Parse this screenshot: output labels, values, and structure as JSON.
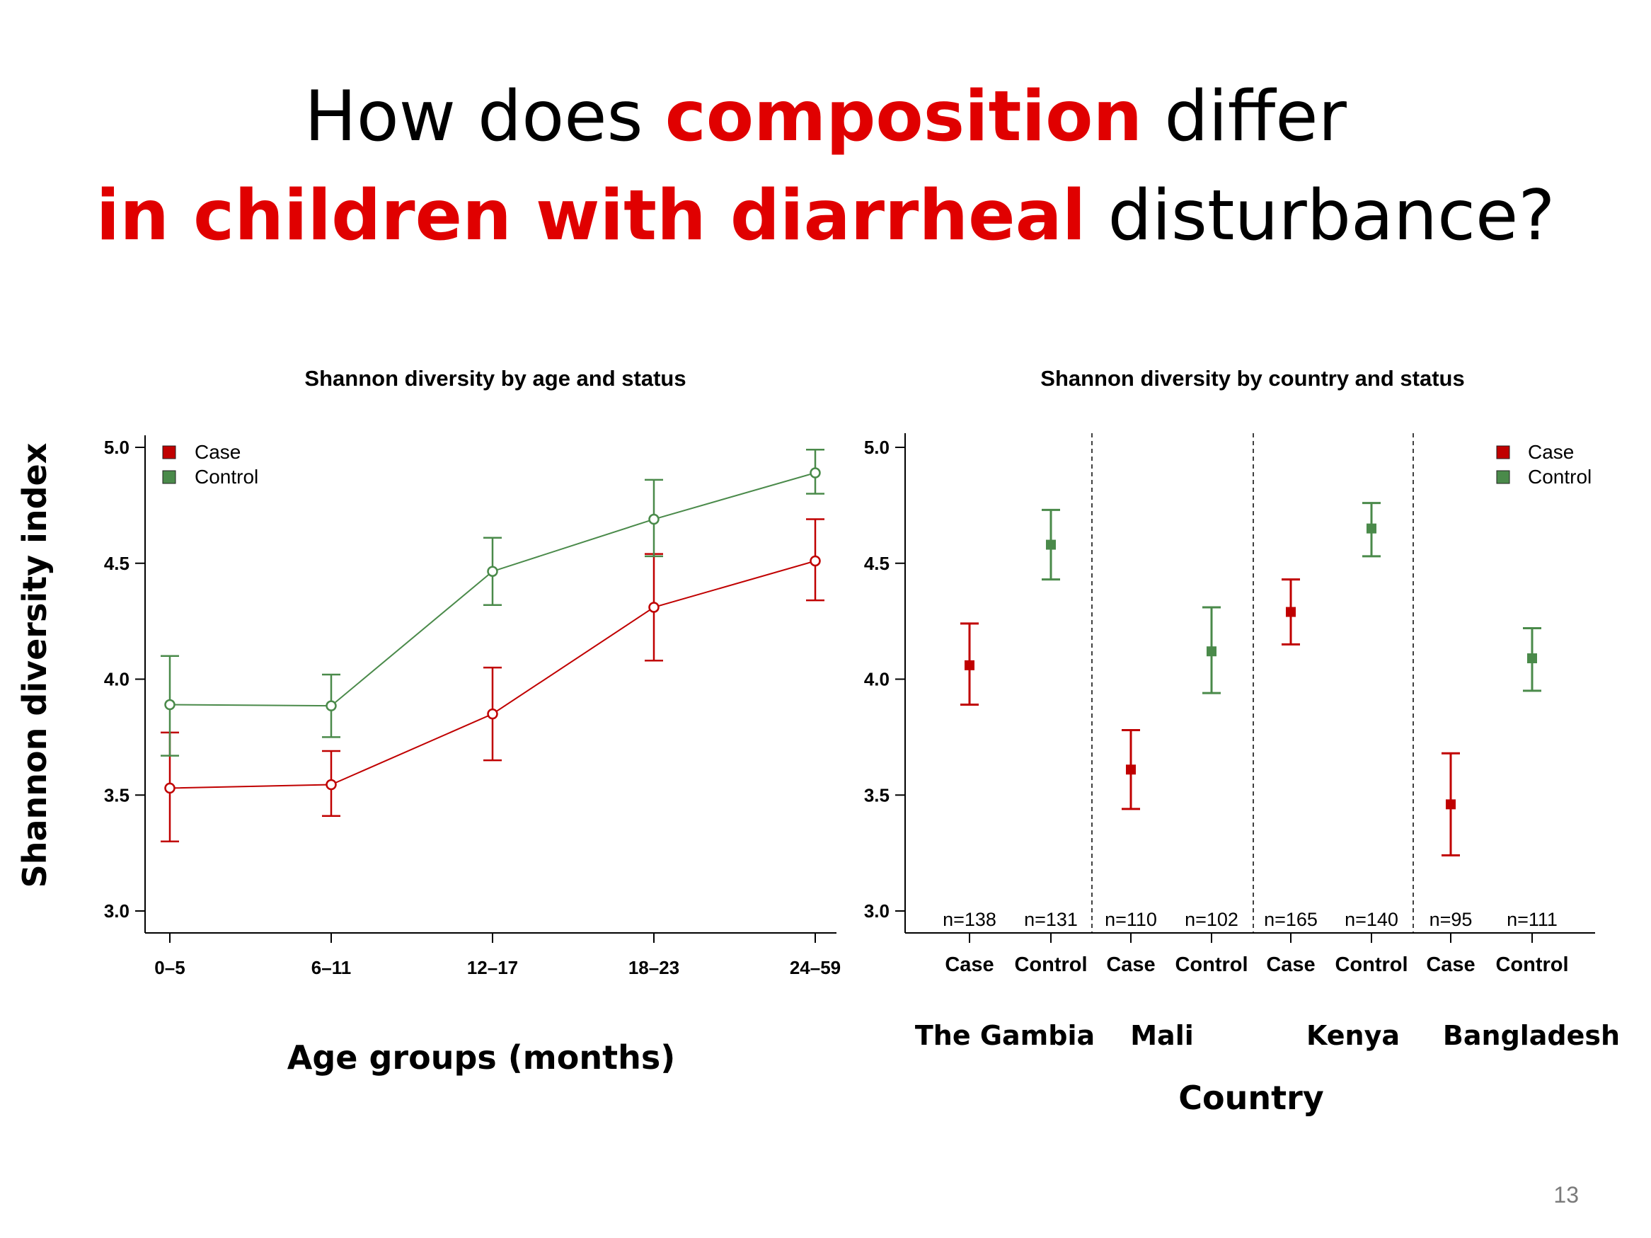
{
  "slide": {
    "title_parts": [
      {
        "text": "How does ",
        "highlight": false
      },
      {
        "text": "composition",
        "highlight": true
      },
      {
        "text": " differ ",
        "highlight": false
      },
      {
        "text": "in children with diarrheal",
        "highlight": true
      },
      {
        "text": " disturbance?",
        "highlight": false
      }
    ],
    "page_number": "13",
    "shared_ylabel": "Shannon diversity index",
    "colors": {
      "case": "#c00000",
      "control": "#4a8a4a",
      "title_highlight": "#e00000"
    }
  },
  "chart_data": [
    {
      "type": "line",
      "title": "Shannon diversity by age and status",
      "xlabel": "Age groups (months)",
      "ylabel": "Shannon diversity index",
      "categories": [
        "0–5",
        "6–11",
        "12–17",
        "18–23",
        "24–59"
      ],
      "ylim": [
        3.0,
        5.0
      ],
      "yticks": [
        "3.0",
        "3.5",
        "4.0",
        "4.5",
        "5.0"
      ],
      "legend": {
        "position": "top-left",
        "entries": [
          "Case",
          "Control"
        ]
      },
      "grid": false,
      "series": [
        {
          "name": "Case",
          "color": "#c00000",
          "values": [
            3.53,
            3.545,
            3.85,
            4.31,
            4.51
          ],
          "lower": [
            3.3,
            3.41,
            3.65,
            4.08,
            4.34
          ],
          "upper": [
            3.77,
            3.69,
            4.05,
            4.54,
            4.69
          ]
        },
        {
          "name": "Control",
          "color": "#4a8a4a",
          "values": [
            3.89,
            3.885,
            4.465,
            4.69,
            4.89
          ],
          "lower": [
            3.67,
            3.75,
            4.32,
            4.53,
            4.8
          ],
          "upper": [
            4.1,
            4.02,
            4.61,
            4.86,
            4.99
          ]
        }
      ]
    },
    {
      "type": "scatter",
      "title": "Shannon diversity by country and status",
      "xlabel": "Country",
      "categories": [
        "Case",
        "Control",
        "Case",
        "Control",
        "Case",
        "Control",
        "Case",
        "Control"
      ],
      "groups": [
        "The Gambia",
        "Mali",
        "Kenya",
        "Bangladesh"
      ],
      "ylim": [
        3.0,
        5.0
      ],
      "yticks": [
        "3.0",
        "3.5",
        "4.0",
        "4.5",
        "5.0"
      ],
      "legend": {
        "position": "top-right",
        "entries": [
          "Case",
          "Control"
        ]
      },
      "grid": false,
      "points": [
        {
          "group": "The Gambia",
          "status": "Case",
          "value": 4.06,
          "lower": 3.89,
          "upper": 4.24,
          "n": "n=138"
        },
        {
          "group": "The Gambia",
          "status": "Control",
          "value": 4.58,
          "lower": 4.43,
          "upper": 4.73,
          "n": "n=131"
        },
        {
          "group": "Mali",
          "status": "Case",
          "value": 3.61,
          "lower": 3.44,
          "upper": 3.78,
          "n": "n=110"
        },
        {
          "group": "Mali",
          "status": "Control",
          "value": 4.12,
          "lower": 3.94,
          "upper": 4.31,
          "n": "n=102"
        },
        {
          "group": "Kenya",
          "status": "Case",
          "value": 4.29,
          "lower": 4.15,
          "upper": 4.43,
          "n": "n=165"
        },
        {
          "group": "Kenya",
          "status": "Control",
          "value": 4.65,
          "lower": 4.53,
          "upper": 4.76,
          "n": "n=140"
        },
        {
          "group": "Bangladesh",
          "status": "Case",
          "value": 3.46,
          "lower": 3.24,
          "upper": 3.68,
          "n": "n=95"
        },
        {
          "group": "Bangladesh",
          "status": "Control",
          "value": 4.09,
          "lower": 3.95,
          "upper": 4.22,
          "n": "n=111"
        }
      ]
    }
  ]
}
